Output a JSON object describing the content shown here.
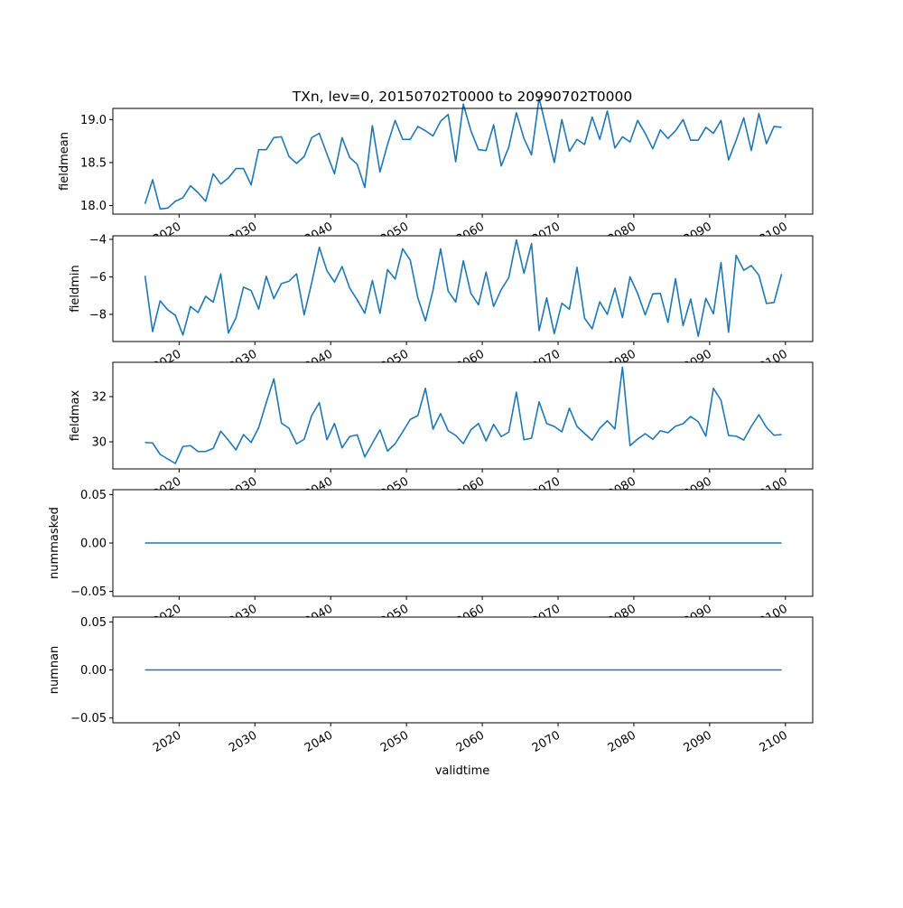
{
  "chart_data": {
    "type": "line",
    "title": "TXn, lev=0, 20150702T0000 to 20990702T0000",
    "xlabel": "validtime",
    "line_color": "#1f77b4",
    "x_start": 2015.5,
    "x_step": 1,
    "xlim": [
      2011.26,
      2103.6
    ],
    "xticks": [
      2020,
      2030,
      2040,
      2050,
      2060,
      2070,
      2080,
      2090,
      2100
    ],
    "xtick_labels": [
      "2020",
      "2030",
      "2040",
      "2050",
      "2060",
      "2070",
      "2080",
      "2090",
      "2100"
    ],
    "grid": false,
    "panels": [
      {
        "ylabel": "fieldmean",
        "ylim": [
          17.9,
          19.13
        ],
        "yticks": [
          18.0,
          18.5,
          19.0
        ],
        "ytick_labels": [
          "18.0",
          "18.5",
          "19.0"
        ],
        "values": [
          18.02,
          18.3,
          17.96,
          17.97,
          18.05,
          18.09,
          18.23,
          18.15,
          18.05,
          18.37,
          18.25,
          18.32,
          18.43,
          18.43,
          18.24,
          18.65,
          18.65,
          18.79,
          18.8,
          18.57,
          18.49,
          18.57,
          18.79,
          18.84,
          18.6,
          18.37,
          18.79,
          18.56,
          18.48,
          18.21,
          18.93,
          18.39,
          18.71,
          18.99,
          18.77,
          18.77,
          18.92,
          18.87,
          18.81,
          18.98,
          19.06,
          18.51,
          19.18,
          18.87,
          18.65,
          18.64,
          18.94,
          18.46,
          18.68,
          19.08,
          18.78,
          18.59,
          19.25,
          18.88,
          18.5,
          19.0,
          18.63,
          18.77,
          18.71,
          19.03,
          18.77,
          19.1,
          18.67,
          18.8,
          18.74,
          18.99,
          18.84,
          18.66,
          18.88,
          18.78,
          18.87,
          19.0,
          18.76,
          18.76,
          18.91,
          18.84,
          18.99,
          18.53,
          18.76,
          19.02,
          18.64,
          19.07,
          18.72,
          18.92,
          18.91
        ]
      },
      {
        "ylabel": "fieldmin",
        "ylim": [
          -9.45,
          -3.81
        ],
        "yticks": [
          -8,
          -6,
          -4
        ],
        "ytick_labels": [
          "−8",
          "−6",
          "−4"
        ],
        "values": [
          -5.94,
          -8.92,
          -7.28,
          -7.76,
          -8.05,
          -9.1,
          -7.58,
          -7.9,
          -7.04,
          -7.35,
          -5.84,
          -9.0,
          -8.19,
          -6.55,
          -6.73,
          -7.72,
          -5.97,
          -7.16,
          -6.36,
          -6.23,
          -5.84,
          -8.03,
          -6.31,
          -4.42,
          -5.67,
          -6.28,
          -5.45,
          -6.59,
          -7.23,
          -7.94,
          -6.19,
          -7.95,
          -5.61,
          -6.12,
          -4.5,
          -5.11,
          -7.12,
          -8.35,
          -6.71,
          -4.5,
          -6.76,
          -7.34,
          -5.14,
          -6.88,
          -7.49,
          -5.75,
          -7.58,
          -6.68,
          -6.04,
          -4.03,
          -5.81,
          -4.23,
          -8.87,
          -7.12,
          -9.03,
          -7.41,
          -7.73,
          -5.49,
          -8.21,
          -8.77,
          -7.33,
          -8.0,
          -6.6,
          -8.18,
          -6.0,
          -6.88,
          -8.03,
          -6.91,
          -6.88,
          -8.43,
          -6.1,
          -8.6,
          -7.18,
          -9.17,
          -7.15,
          -7.97,
          -5.24,
          -8.96,
          -4.85,
          -5.65,
          -5.4,
          -5.91,
          -7.42,
          -7.37,
          -5.85
        ]
      },
      {
        "ylabel": "fieldmax",
        "ylim": [
          28.8,
          33.52
        ],
        "yticks": [
          30,
          32
        ],
        "ytick_labels": [
          "30",
          "32"
        ],
        "values": [
          29.97,
          29.95,
          29.44,
          29.24,
          29.04,
          29.79,
          29.83,
          29.57,
          29.57,
          29.71,
          30.47,
          30.07,
          29.64,
          30.32,
          29.97,
          30.63,
          31.73,
          32.79,
          30.83,
          30.6,
          29.91,
          30.11,
          31.17,
          31.73,
          30.09,
          30.81,
          29.73,
          30.23,
          30.31,
          29.33,
          29.93,
          30.53,
          29.59,
          29.91,
          30.44,
          30.99,
          31.16,
          32.37,
          30.56,
          31.25,
          30.49,
          30.28,
          29.92,
          30.53,
          30.81,
          30.04,
          30.77,
          30.23,
          30.43,
          32.2,
          30.09,
          30.16,
          31.77,
          30.81,
          30.68,
          30.44,
          31.49,
          30.68,
          30.37,
          30.07,
          30.6,
          30.93,
          30.57,
          33.31,
          29.83,
          30.12,
          30.36,
          30.11,
          30.49,
          30.4,
          30.69,
          30.8,
          31.12,
          30.89,
          30.25,
          32.37,
          31.84,
          30.28,
          30.25,
          30.08,
          30.68,
          31.2,
          30.64,
          30.29,
          30.32
        ]
      },
      {
        "ylabel": "nummasked",
        "ylim": [
          -0.055,
          0.055
        ],
        "yticks": [
          -0.05,
          0.0,
          0.05
        ],
        "ytick_labels": [
          "−0.05",
          "0.00",
          "0.05"
        ],
        "values": [
          0,
          0,
          0,
          0,
          0,
          0,
          0,
          0,
          0,
          0,
          0,
          0,
          0,
          0,
          0,
          0,
          0,
          0,
          0,
          0,
          0,
          0,
          0,
          0,
          0,
          0,
          0,
          0,
          0,
          0,
          0,
          0,
          0,
          0,
          0,
          0,
          0,
          0,
          0,
          0,
          0,
          0,
          0,
          0,
          0,
          0,
          0,
          0,
          0,
          0,
          0,
          0,
          0,
          0,
          0,
          0,
          0,
          0,
          0,
          0,
          0,
          0,
          0,
          0,
          0,
          0,
          0,
          0,
          0,
          0,
          0,
          0,
          0,
          0,
          0,
          0,
          0,
          0,
          0,
          0,
          0,
          0,
          0,
          0,
          0
        ]
      },
      {
        "ylabel": "numnan",
        "ylim": [
          -0.055,
          0.055
        ],
        "yticks": [
          -0.05,
          0.0,
          0.05
        ],
        "ytick_labels": [
          "−0.05",
          "0.00",
          "0.05"
        ],
        "values": [
          0,
          0,
          0,
          0,
          0,
          0,
          0,
          0,
          0,
          0,
          0,
          0,
          0,
          0,
          0,
          0,
          0,
          0,
          0,
          0,
          0,
          0,
          0,
          0,
          0,
          0,
          0,
          0,
          0,
          0,
          0,
          0,
          0,
          0,
          0,
          0,
          0,
          0,
          0,
          0,
          0,
          0,
          0,
          0,
          0,
          0,
          0,
          0,
          0,
          0,
          0,
          0,
          0,
          0,
          0,
          0,
          0,
          0,
          0,
          0,
          0,
          0,
          0,
          0,
          0,
          0,
          0,
          0,
          0,
          0,
          0,
          0,
          0,
          0,
          0,
          0,
          0,
          0,
          0,
          0,
          0,
          0,
          0,
          0,
          0
        ]
      }
    ]
  }
}
